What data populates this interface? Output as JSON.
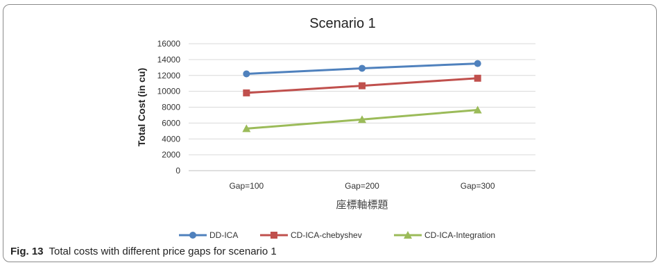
{
  "chart_data": {
    "type": "line",
    "title": "Scenario 1",
    "xlabel": "座標軸標題",
    "ylabel": "Total Cost (in cu)",
    "categories": [
      "Gap=100",
      "Gap=200",
      "Gap=300"
    ],
    "ylim": [
      0,
      16000
    ],
    "yticks": [
      0,
      2000,
      4000,
      6000,
      8000,
      10000,
      12000,
      14000,
      16000
    ],
    "grid": true,
    "legend_position": "bottom",
    "series": [
      {
        "name": "DD-ICA",
        "values": [
          12200,
          12900,
          13500
        ],
        "color": "#4f81bd",
        "marker": "circle"
      },
      {
        "name": "CD-ICA-chebyshev",
        "values": [
          9800,
          10700,
          11650
        ],
        "color": "#c0504d",
        "marker": "square"
      },
      {
        "name": "CD-ICA-Integration",
        "values": [
          5300,
          6450,
          7650
        ],
        "color": "#9bbb59",
        "marker": "triangle"
      }
    ]
  },
  "caption": {
    "label": "Fig. 13",
    "text": "Total costs with different price gaps for scenario 1"
  }
}
